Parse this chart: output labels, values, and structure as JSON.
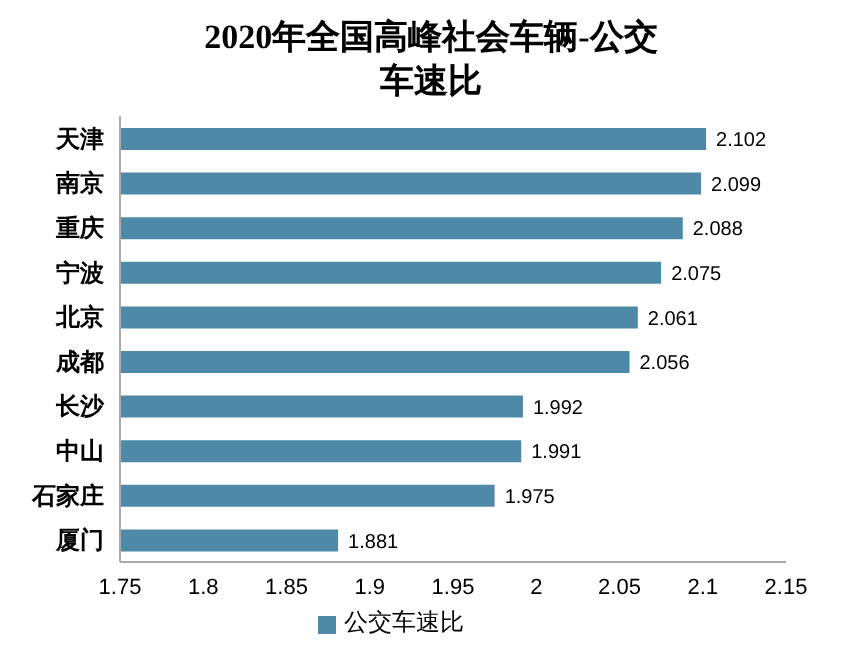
{
  "chart_data": {
    "type": "bar",
    "orientation": "horizontal",
    "title": "2020年全国高峰社会车辆-公交车速比",
    "categories": [
      "天津",
      "南京",
      "重庆",
      "宁波",
      "北京",
      "成都",
      "长沙",
      "中山",
      "石家庄",
      "厦门"
    ],
    "series": [
      {
        "name": "公交车速比",
        "color": "#4f89a8",
        "values": [
          2.102,
          2.099,
          2.088,
          2.075,
          2.061,
          2.056,
          1.992,
          1.991,
          1.975,
          1.881
        ]
      }
    ],
    "xlim": [
      1.75,
      2.15
    ],
    "xticks": [
      1.75,
      1.8,
      1.85,
      1.9,
      1.95,
      2,
      2.05,
      2.1,
      2.15
    ],
    "data_labels": true,
    "legend": "bottom",
    "grid": false
  }
}
